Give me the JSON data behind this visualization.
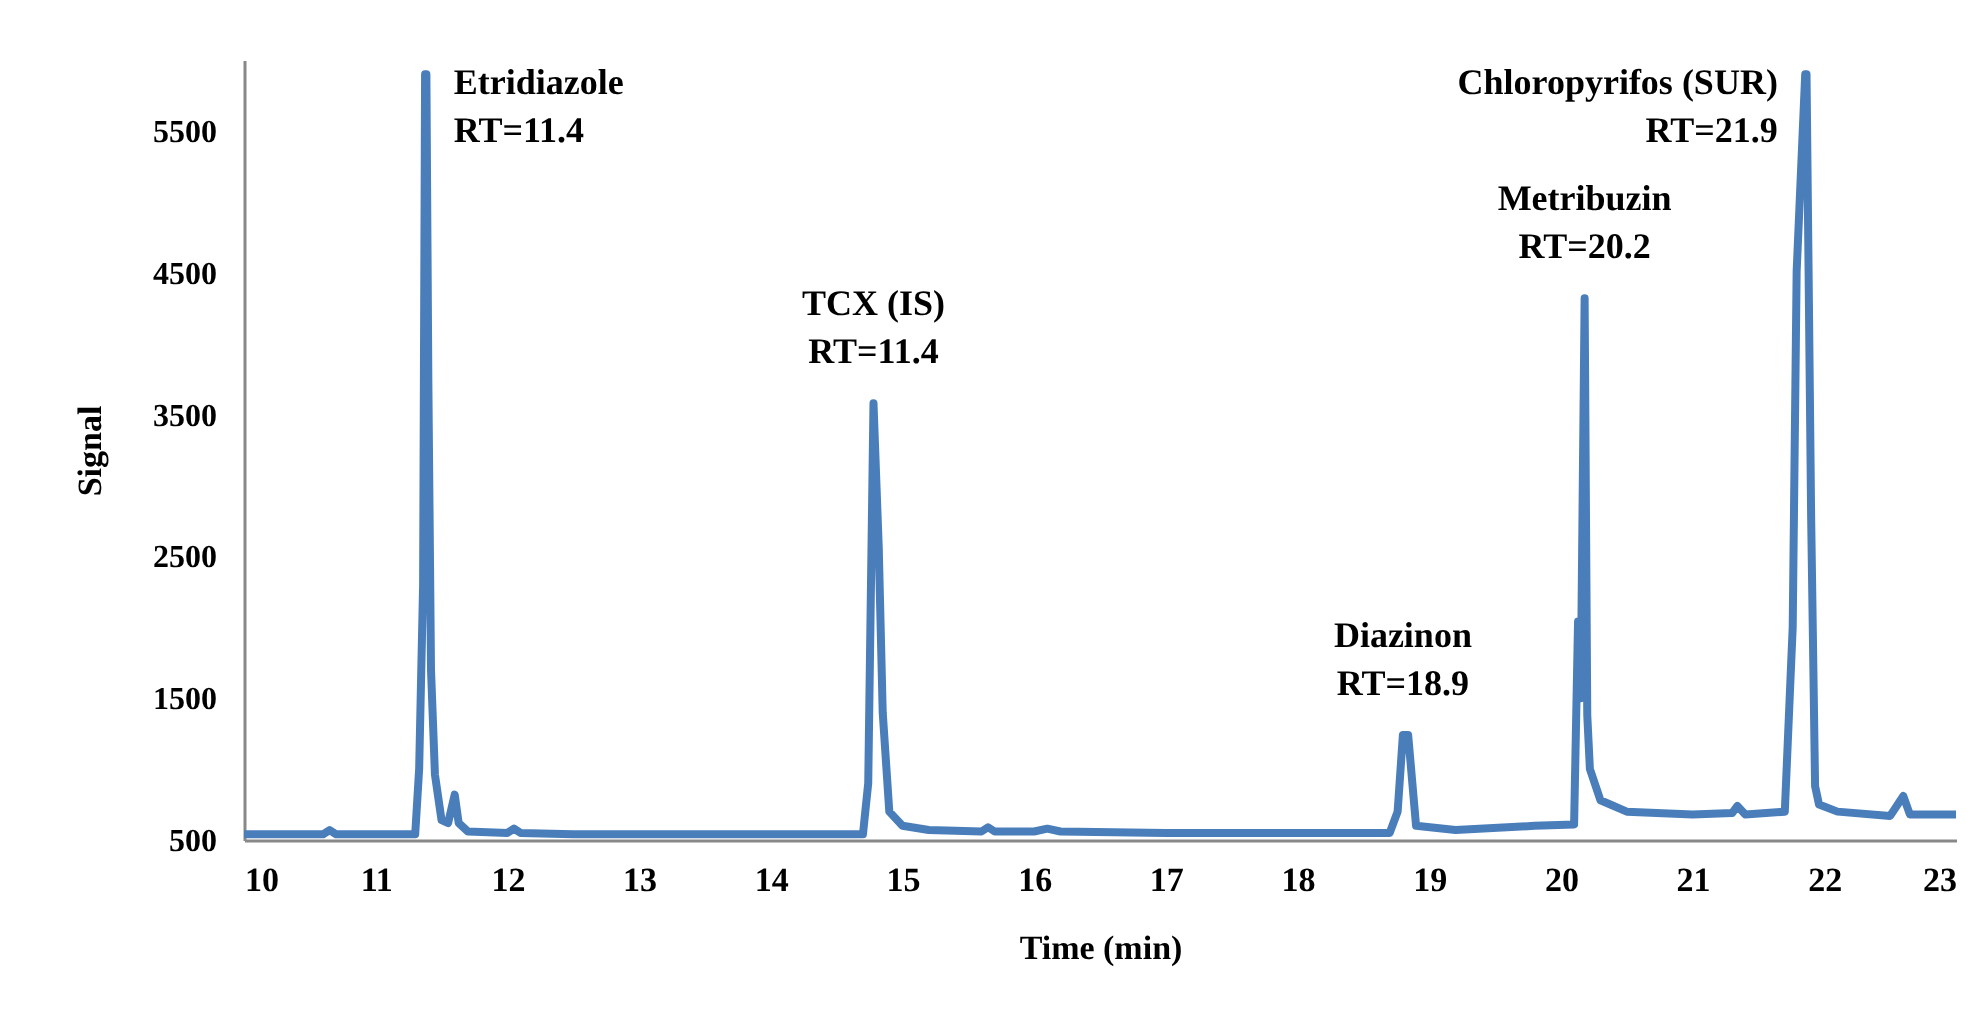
{
  "chart_data": {
    "type": "line",
    "xlabel": "Time (min)",
    "ylabel": "Signal",
    "xlim": [
      10,
      23
    ],
    "ylim": [
      500,
      6000
    ],
    "xticks": [
      10,
      11,
      12,
      13,
      14,
      15,
      16,
      17,
      18,
      19,
      20,
      21,
      22,
      23
    ],
    "yticks": [
      500,
      1500,
      2500,
      3500,
      4500,
      5500
    ],
    "grid": false,
    "marker": "none",
    "line_style": "solid",
    "series": [
      {
        "color": "#4a7ebb",
        "x": [
          10,
          10.3,
          10.6,
          10.65,
          10.7,
          11,
          11.3,
          11.33,
          11.36,
          11.375,
          11.38,
          11.385,
          11.4,
          11.42,
          11.45,
          11.5,
          11.55,
          11.6,
          11.63,
          11.7,
          12,
          12.05,
          12.1,
          12.5,
          13,
          14,
          14.7,
          14.74,
          14.78,
          14.82,
          14.85,
          14.9,
          15,
          15.2,
          15.6,
          15.65,
          15.7,
          16,
          16.1,
          16.2,
          17,
          18,
          18.7,
          18.76,
          18.8,
          18.84,
          18.9,
          19.2,
          19.8,
          20.1,
          20.13,
          20.15,
          20.18,
          20.2,
          20.22,
          20.3,
          20.5,
          21,
          21.3,
          21.34,
          21.4,
          21.7,
          21.76,
          21.79,
          21.855,
          21.86,
          21.865,
          21.9,
          21.93,
          21.96,
          22.1,
          22.5,
          22.6,
          22.65,
          23
        ],
        "values": [
          540,
          540,
          540,
          570,
          540,
          540,
          540,
          1000,
          2300,
          5900,
          null,
          5900,
          3720,
          1700,
          960,
          640,
          620,
          820,
          620,
          560,
          550,
          580,
          550,
          540,
          540,
          540,
          540,
          900,
          3580,
          2560,
          1400,
          700,
          600,
          570,
          560,
          590,
          560,
          560,
          580,
          560,
          550,
          550,
          550,
          700,
          1240,
          1240,
          600,
          570,
          600,
          610,
          2040,
          1500,
          4320,
          1380,
          1000,
          780,
          700,
          680,
          690,
          740,
          680,
          700,
          2000,
          4510,
          5900,
          null,
          5900,
          2780,
          880,
          750,
          700,
          670,
          810,
          680,
          680
        ]
      }
    ],
    "annotations": [
      {
        "text": "Etridiazole\nRT=11.4",
        "x": 11.38,
        "y": 5900
      },
      {
        "text": "TCX (IS)\nRT=11.4",
        "x": 14.78,
        "y": 3580
      },
      {
        "text": "Diazinon\nRT=18.9",
        "x": 18.8,
        "y": 1240
      },
      {
        "text": "Metribuzin\nRT=20.2",
        "x": 20.18,
        "y": 4320
      },
      {
        "text": "Chloropyrifos (SUR)\nRT=21.9",
        "x": 21.86,
        "y": 5900
      }
    ]
  }
}
